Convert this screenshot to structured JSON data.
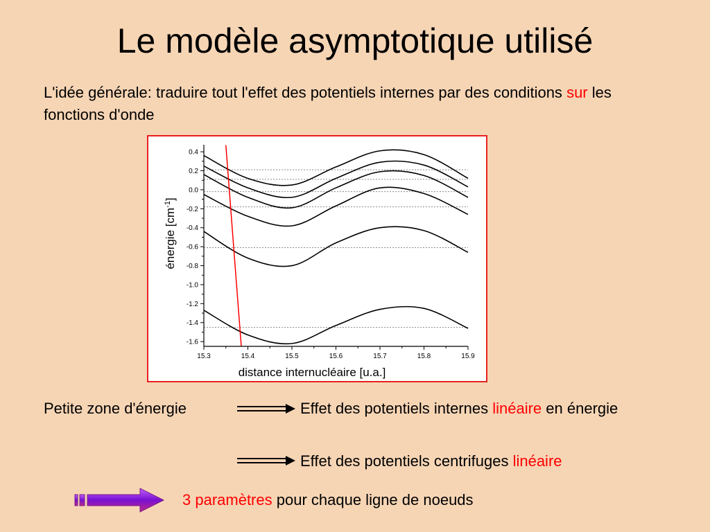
{
  "slide": {
    "title": "Le modèle asymptotique utilisé",
    "intro_part1": "L'idée générale: traduire tout l'effet des potentiels internes par des conditions",
    "intro_highlight": "sur",
    "intro_part2": "les fonctions d'onde",
    "left_label": "Petite zone d'énergie",
    "effect1_text": "Effet des potentiels internes",
    "effect1_highlight": "linéaire",
    "effect1_tail": "en énergie",
    "effect2_text": "Effet des potentiels centrifuges",
    "effect2_highlight": "linéaire",
    "conclusion_highlight": "3 paramètres",
    "conclusion_text": "pour chaque ligne de noeuds"
  },
  "colors": {
    "background": "#f6d5b5",
    "accent": "#ff0000",
    "frame": "#e8201e",
    "arrow_fill": "#8b1fd6"
  },
  "chart_data": {
    "type": "line",
    "xlabel": "distance internucléaire [u.a.]",
    "ylabel": "énergie [cm-1]",
    "xlim": [
      15.3,
      15.9
    ],
    "ylim": [
      -1.65,
      0.43
    ],
    "xticks": [
      "15.3",
      "15.4",
      "15.5",
      "15.6",
      "15.7",
      "15.8",
      "15.9"
    ],
    "yticks": [
      "0.4",
      "0.2",
      "0.0",
      "-0.2",
      "-0.4",
      "-0.6",
      "-0.8",
      "-1.0",
      "-1.2",
      "-1.4",
      "-1.6"
    ],
    "reference_levels": [
      0.21,
      0.11,
      -0.02,
      -0.18,
      -0.61,
      -1.45
    ],
    "series": [
      {
        "x": [
          15.3,
          15.4,
          15.5,
          15.6,
          15.7,
          15.8,
          15.9
        ],
        "y": [
          0.36,
          0.12,
          0.05,
          0.24,
          0.41,
          0.37,
          0.12
        ]
      },
      {
        "x": [
          15.3,
          15.4,
          15.5,
          15.6,
          15.7,
          15.8,
          15.9
        ],
        "y": [
          0.25,
          0.02,
          -0.08,
          0.12,
          0.29,
          0.26,
          0.03
        ]
      },
      {
        "x": [
          15.3,
          15.4,
          15.5,
          15.6,
          15.7,
          15.8,
          15.9
        ],
        "y": [
          0.16,
          -0.08,
          -0.19,
          0.02,
          0.19,
          0.15,
          -0.08
        ]
      },
      {
        "x": [
          15.3,
          15.4,
          15.5,
          15.6,
          15.7,
          15.8,
          15.9
        ],
        "y": [
          -0.05,
          -0.28,
          -0.38,
          -0.17,
          0.02,
          -0.04,
          -0.26
        ]
      },
      {
        "x": [
          15.3,
          15.4,
          15.5,
          15.6,
          15.7,
          15.8,
          15.9
        ],
        "y": [
          -0.44,
          -0.72,
          -0.8,
          -0.56,
          -0.4,
          -0.43,
          -0.66
        ]
      },
      {
        "x": [
          15.3,
          15.4,
          15.5,
          15.6,
          15.7,
          15.8,
          15.9
        ],
        "y": [
          -1.27,
          -1.53,
          -1.62,
          -1.43,
          -1.26,
          -1.25,
          -1.46
        ]
      }
    ],
    "red_line": {
      "x": [
        15.35,
        15.385
      ],
      "y": [
        0.47,
        -1.65
      ]
    }
  }
}
